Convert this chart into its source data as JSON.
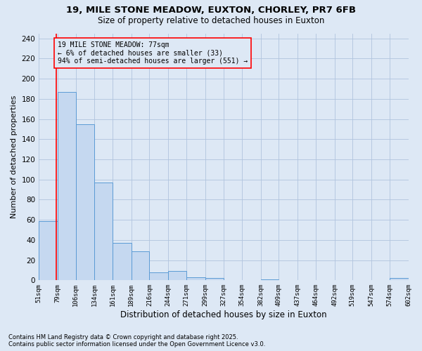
{
  "title1": "19, MILE STONE MEADOW, EUXTON, CHORLEY, PR7 6FB",
  "title2": "Size of property relative to detached houses in Euxton",
  "xlabel": "Distribution of detached houses by size in Euxton",
  "ylabel": "Number of detached properties",
  "bin_labels": [
    "51sqm",
    "79sqm",
    "106sqm",
    "134sqm",
    "161sqm",
    "189sqm",
    "216sqm",
    "244sqm",
    "271sqm",
    "299sqm",
    "327sqm",
    "354sqm",
    "382sqm",
    "409sqm",
    "437sqm",
    "464sqm",
    "492sqm",
    "519sqm",
    "547sqm",
    "574sqm",
    "602sqm"
  ],
  "bar_values": [
    59,
    187,
    155,
    97,
    37,
    29,
    8,
    9,
    3,
    2,
    0,
    0,
    1,
    0,
    0,
    0,
    0,
    0,
    0,
    2
  ],
  "bar_color": "#c5d8f0",
  "bar_edge_color": "#5b9bd5",
  "red_line_x": 77,
  "annotation_text_line1": "19 MILE STONE MEADOW: 77sqm",
  "annotation_text_line2": "← 6% of detached houses are smaller (33)",
  "annotation_text_line3": "94% of semi-detached houses are larger (551) →",
  "ylim": [
    0,
    245
  ],
  "yticks": [
    0,
    20,
    40,
    60,
    80,
    100,
    120,
    140,
    160,
    180,
    200,
    220,
    240
  ],
  "bin_edges": [
    51,
    79,
    106,
    134,
    161,
    189,
    216,
    244,
    271,
    299,
    327,
    354,
    382,
    409,
    437,
    464,
    492,
    519,
    547,
    574,
    602
  ],
  "footnote1": "Contains HM Land Registry data © Crown copyright and database right 2025.",
  "footnote2": "Contains public sector information licensed under the Open Government Licence v3.0.",
  "bg_color": "#dde8f5",
  "grid_color": "#b0c4de",
  "title_fontsize": 9.5,
  "subtitle_fontsize": 8.5,
  "ylabel_fontsize": 8,
  "xlabel_fontsize": 8.5
}
